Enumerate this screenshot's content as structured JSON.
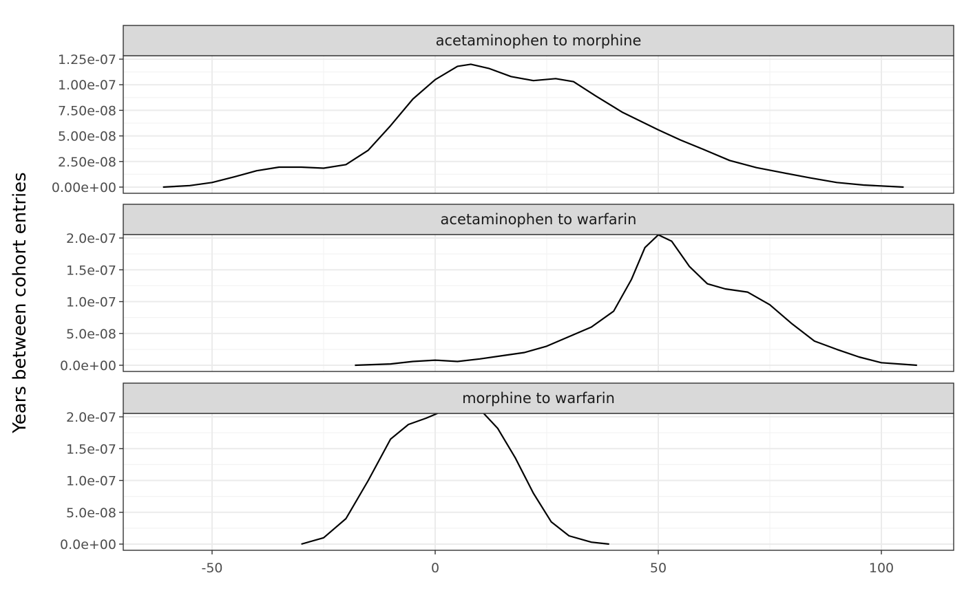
{
  "chart_data": {
    "type": "line",
    "subtype": "faceted density",
    "ylabel": "Years between cohort entries",
    "xlabel": "",
    "xlim": [
      -70,
      108
    ],
    "x_ticks": [
      -50,
      0,
      50,
      100
    ],
    "x_tick_labels": [
      "-50",
      "0",
      "50",
      "100"
    ],
    "grid": true,
    "facets": [
      {
        "label": "acetaminophen to morphine",
        "ylim": [
          0,
          1.25e-07
        ],
        "y_ticks": [
          0,
          2.5e-08,
          5e-08,
          7.5e-08,
          1e-07,
          1.25e-07
        ],
        "y_tick_labels": [
          "0.00e+00",
          "2.50e-08",
          "5.00e-08",
          "7.50e-08",
          "1.00e-07",
          "1.25e-07"
        ],
        "x": [
          -61,
          -55,
          -50,
          -45,
          -40,
          -35,
          -30,
          -25,
          -20,
          -15,
          -10,
          -5,
          0,
          5,
          8,
          12,
          17,
          22,
          27,
          31,
          36,
          42,
          50,
          55,
          60,
          66,
          72,
          78,
          84,
          90,
          96,
          105
        ],
        "y": [
          0,
          1.5e-09,
          4.5e-09,
          1e-08,
          1.6e-08,
          1.95e-08,
          1.95e-08,
          1.85e-08,
          2.2e-08,
          3.6e-08,
          6e-08,
          8.6e-08,
          1.05e-07,
          1.18e-07,
          1.2e-07,
          1.16e-07,
          1.08e-07,
          1.04e-07,
          1.06e-07,
          1.03e-07,
          8.9e-08,
          7.3e-08,
          5.6e-08,
          4.6e-08,
          3.7e-08,
          2.6e-08,
          1.9e-08,
          1.4e-08,
          9e-09,
          4.5e-09,
          2e-09,
          0
        ]
      },
      {
        "label": "acetaminophen to warfarin",
        "ylim": [
          0,
          2e-07
        ],
        "y_ticks": [
          0,
          5e-08,
          1e-07,
          1.5e-07,
          2e-07
        ],
        "y_tick_labels": [
          "0.0e+00",
          "5.0e-08",
          "1.0e-07",
          "1.5e-07",
          "2.0e-07"
        ],
        "x": [
          -18,
          -10,
          -5,
          0,
          5,
          10,
          15,
          20,
          25,
          30,
          35,
          40,
          44,
          47,
          50,
          53,
          57,
          61,
          65,
          70,
          75,
          80,
          85,
          90,
          95,
          100,
          108
        ],
        "y": [
          0,
          2e-09,
          6e-09,
          8e-09,
          6e-09,
          1e-08,
          1.5e-08,
          2e-08,
          3e-08,
          4.5e-08,
          6e-08,
          8.5e-08,
          1.35e-07,
          1.85e-07,
          2.05e-07,
          1.95e-07,
          1.55e-07,
          1.28e-07,
          1.2e-07,
          1.15e-07,
          9.5e-08,
          6.5e-08,
          3.8e-08,
          2.5e-08,
          1.3e-08,
          4e-09,
          0
        ]
      },
      {
        "label": "morphine to warfarin",
        "ylim": [
          0,
          2e-07
        ],
        "y_ticks": [
          0,
          5e-08,
          1e-07,
          1.5e-07,
          2e-07
        ],
        "y_tick_labels": [
          "0.0e+00",
          "5.0e-08",
          "1.0e-07",
          "1.5e-07",
          "2.0e-07"
        ],
        "x": [
          -30,
          -25,
          -20,
          -15,
          -10,
          -6,
          -2,
          2,
          6,
          10,
          14,
          18,
          22,
          26,
          30,
          35,
          39
        ],
        "y": [
          0,
          1e-08,
          4e-08,
          1e-07,
          1.65e-07,
          1.88e-07,
          1.98e-07,
          2.1e-07,
          2.18e-07,
          2.12e-07,
          1.82e-07,
          1.35e-07,
          8e-08,
          3.5e-08,
          1.3e-08,
          3e-09,
          0
        ]
      }
    ]
  }
}
